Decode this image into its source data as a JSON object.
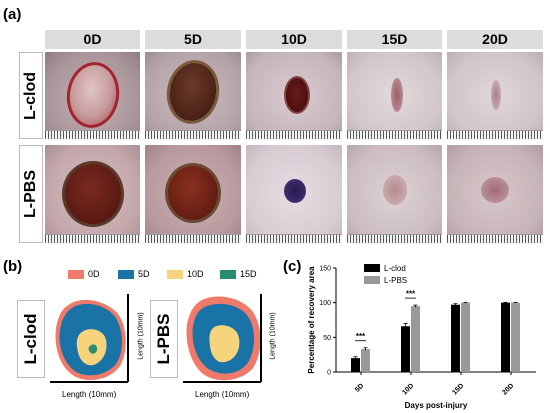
{
  "panels": {
    "a": {
      "letter": "(a)"
    },
    "b": {
      "letter": "(b)"
    },
    "c": {
      "letter": "(c)"
    }
  },
  "panel_a": {
    "days": [
      "0D",
      "5D",
      "10D",
      "15D",
      "20D"
    ],
    "rows": [
      "L-clod",
      "L-PBS"
    ]
  },
  "panel_b": {
    "legend": [
      {
        "label": "0D",
        "color": "#f07a6a"
      },
      {
        "label": "5D",
        "color": "#1a73a6"
      },
      {
        "label": "10D",
        "color": "#f6d47c"
      },
      {
        "label": "15D",
        "color": "#2a8c6e"
      }
    ],
    "maps": [
      {
        "label": "L-clod",
        "xaxis": "Length (10mm)",
        "yaxis": "Length (10mm)"
      },
      {
        "label": "L-PBS",
        "xaxis": "Length (10mm)",
        "yaxis": "Length (10mm)"
      }
    ]
  },
  "chart_data": {
    "type": "bar",
    "categories": [
      "5D",
      "10D",
      "15D",
      "20D"
    ],
    "series": [
      {
        "name": "L-clod",
        "values": [
          20,
          66,
          97,
          100
        ],
        "errors": [
          2,
          4,
          1.5,
          0.5
        ],
        "color": "#000000"
      },
      {
        "name": "L-PBS",
        "values": [
          33,
          95,
          100,
          100
        ],
        "errors": [
          2,
          1.5,
          0.5,
          0.5
        ],
        "color": "#999999"
      }
    ],
    "title": "",
    "xlabel": "Days post-injury",
    "ylabel": "Percentage of recovery area",
    "ylim": [
      0,
      150
    ],
    "yticks": [
      0,
      50,
      100,
      150
    ],
    "significance": [
      {
        "category": "5D",
        "label": "***"
      },
      {
        "category": "10D",
        "label": "***"
      }
    ],
    "legend_position": "top-right"
  }
}
